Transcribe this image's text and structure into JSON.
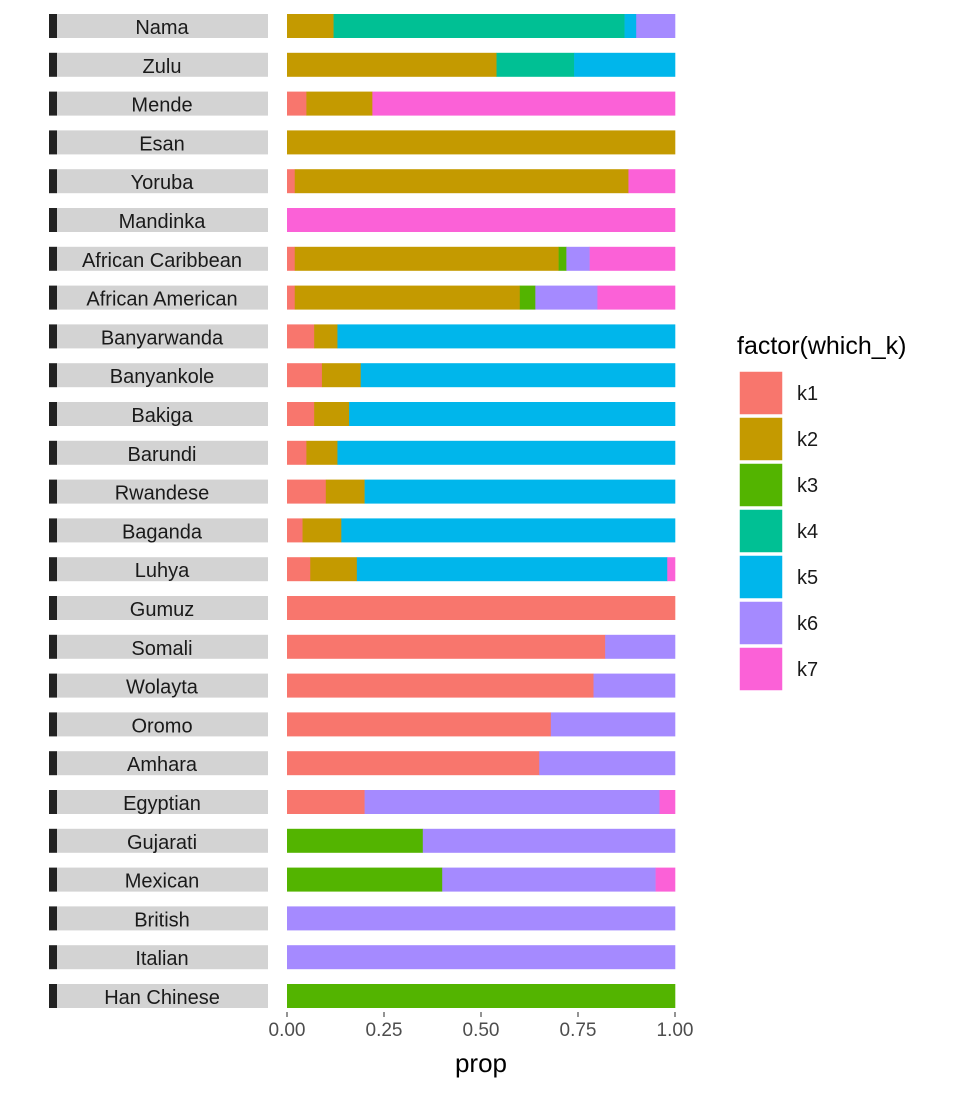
{
  "chart_data": {
    "type": "bar",
    "stacked": true,
    "orientation": "horizontal",
    "faceted_by_population": true,
    "xlabel": "prop",
    "ylabel": "",
    "xlim": [
      0,
      1
    ],
    "x_ticks": [
      "0.00",
      "0.25",
      "0.50",
      "0.75",
      "1.00"
    ],
    "grid": false,
    "legend": {
      "title": "factor(which_k)",
      "placement": "right",
      "entries": [
        {
          "label": "k1",
          "color": "#F8766D"
        },
        {
          "label": "k2",
          "color": "#C49A00"
        },
        {
          "label": "k3",
          "color": "#53B400"
        },
        {
          "label": "k4",
          "color": "#00C094"
        },
        {
          "label": "k5",
          "color": "#00B6EB"
        },
        {
          "label": "k6",
          "color": "#A58AFF"
        },
        {
          "label": "k7",
          "color": "#FB61D7"
        }
      ]
    },
    "series_order": [
      "k1",
      "k2",
      "k3",
      "k4",
      "k5",
      "k6",
      "k7"
    ],
    "populations": [
      {
        "name": "Nama",
        "values": [
          0.0,
          0.12,
          0.0,
          0.75,
          0.03,
          0.1,
          0.0
        ]
      },
      {
        "name": "Zulu",
        "values": [
          0.0,
          0.54,
          0.0,
          0.2,
          0.26,
          0.0,
          0.0
        ]
      },
      {
        "name": "Mende",
        "values": [
          0.05,
          0.17,
          0.0,
          0.0,
          0.0,
          0.0,
          0.78
        ]
      },
      {
        "name": "Esan",
        "values": [
          0.0,
          1.0,
          0.0,
          0.0,
          0.0,
          0.0,
          0.0
        ]
      },
      {
        "name": "Yoruba",
        "values": [
          0.02,
          0.86,
          0.0,
          0.0,
          0.0,
          0.0,
          0.12
        ]
      },
      {
        "name": "Mandinka",
        "values": [
          0.0,
          0.0,
          0.0,
          0.0,
          0.0,
          0.0,
          1.0
        ]
      },
      {
        "name": "African Caribbean",
        "values": [
          0.02,
          0.68,
          0.02,
          0.0,
          0.0,
          0.06,
          0.22
        ]
      },
      {
        "name": "African American",
        "values": [
          0.02,
          0.58,
          0.04,
          0.0,
          0.0,
          0.16,
          0.2
        ]
      },
      {
        "name": "Banyarwanda",
        "values": [
          0.07,
          0.06,
          0.0,
          0.0,
          0.87,
          0.0,
          0.0
        ]
      },
      {
        "name": "Banyankole",
        "values": [
          0.09,
          0.1,
          0.0,
          0.0,
          0.81,
          0.0,
          0.0
        ]
      },
      {
        "name": "Bakiga",
        "values": [
          0.07,
          0.09,
          0.0,
          0.0,
          0.84,
          0.0,
          0.0
        ]
      },
      {
        "name": "Barundi",
        "values": [
          0.05,
          0.08,
          0.0,
          0.0,
          0.87,
          0.0,
          0.0
        ]
      },
      {
        "name": "Rwandese",
        "values": [
          0.1,
          0.1,
          0.0,
          0.0,
          0.8,
          0.0,
          0.0
        ]
      },
      {
        "name": "Baganda",
        "values": [
          0.04,
          0.1,
          0.0,
          0.0,
          0.86,
          0.0,
          0.0
        ]
      },
      {
        "name": "Luhya",
        "values": [
          0.06,
          0.12,
          0.0,
          0.0,
          0.8,
          0.0,
          0.02
        ]
      },
      {
        "name": "Gumuz",
        "values": [
          1.0,
          0.0,
          0.0,
          0.0,
          0.0,
          0.0,
          0.0
        ]
      },
      {
        "name": "Somali",
        "values": [
          0.82,
          0.0,
          0.0,
          0.0,
          0.0,
          0.18,
          0.0
        ]
      },
      {
        "name": "Wolayta",
        "values": [
          0.79,
          0.0,
          0.0,
          0.0,
          0.0,
          0.21,
          0.0
        ]
      },
      {
        "name": "Oromo",
        "values": [
          0.68,
          0.0,
          0.0,
          0.0,
          0.0,
          0.32,
          0.0
        ]
      },
      {
        "name": "Amhara",
        "values": [
          0.65,
          0.0,
          0.0,
          0.0,
          0.0,
          0.35,
          0.0
        ]
      },
      {
        "name": "Egyptian",
        "values": [
          0.2,
          0.0,
          0.0,
          0.0,
          0.0,
          0.76,
          0.04
        ]
      },
      {
        "name": "Gujarati",
        "values": [
          0.0,
          0.0,
          0.35,
          0.0,
          0.0,
          0.65,
          0.0
        ]
      },
      {
        "name": "Mexican",
        "values": [
          0.0,
          0.0,
          0.4,
          0.0,
          0.0,
          0.55,
          0.05
        ]
      },
      {
        "name": "British",
        "values": [
          0.0,
          0.0,
          0.0,
          0.0,
          0.0,
          1.0,
          0.0
        ]
      },
      {
        "name": "Italian",
        "values": [
          0.0,
          0.0,
          0.0,
          0.0,
          0.0,
          1.0,
          0.0
        ]
      },
      {
        "name": "Han Chinese",
        "values": [
          0.0,
          0.0,
          1.0,
          0.0,
          0.0,
          0.0,
          0.0
        ]
      }
    ]
  }
}
